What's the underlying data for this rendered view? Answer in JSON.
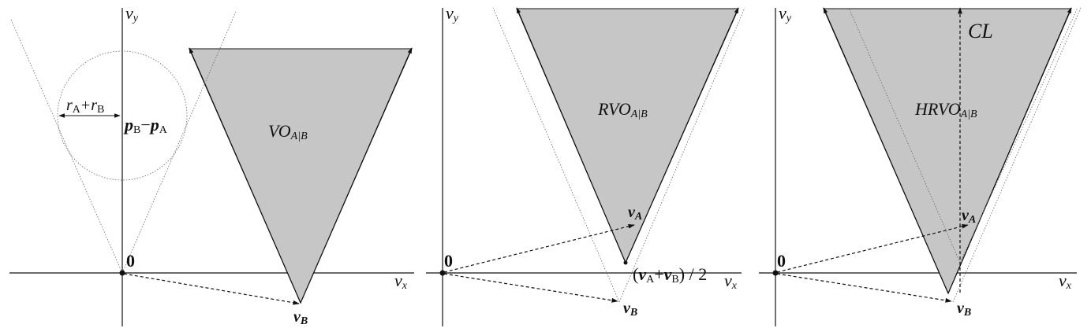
{
  "axis_labels": {
    "vx": "v",
    "vx_sub": "x",
    "vy": "v",
    "vy_sub": "y"
  },
  "panel1": {
    "origin_label": "0",
    "radius_label": {
      "r1": "r",
      "r1_sub": "A",
      "plus": "+",
      "r2": "r",
      "r2_sub": "B"
    },
    "rel_pos_label": {
      "p1": "p",
      "p1_sub": "B",
      "minus": "−",
      "p2": "p",
      "p2_sub": "A"
    },
    "region_label": {
      "main": "VO",
      "sub": "A|B"
    },
    "vb_label": {
      "main": "v",
      "sub": "B"
    }
  },
  "panel2": {
    "origin_label": "0",
    "region_label": {
      "main": "RVO",
      "sub": "A|B"
    },
    "va_label": {
      "main": "v",
      "sub": "A"
    },
    "vb_label": {
      "main": "v",
      "sub": "B"
    },
    "avg_label": {
      "open": "(",
      "v1": "v",
      "v1_sub": "A",
      "plus": "+",
      "v2": "v",
      "v2_sub": "B",
      "close": ") / 2"
    }
  },
  "panel3": {
    "origin_label": "0",
    "region_label": {
      "main": "HRVO",
      "sub": "A|B"
    },
    "cl_label": "CL",
    "va_label": {
      "main": "v",
      "sub": "A"
    },
    "vb_label": {
      "main": "v",
      "sub": "B"
    }
  },
  "colors": {
    "cone_fill": "#c6c6c6",
    "ink": "#111111",
    "guide": "#666666",
    "background": "#ffffff"
  }
}
